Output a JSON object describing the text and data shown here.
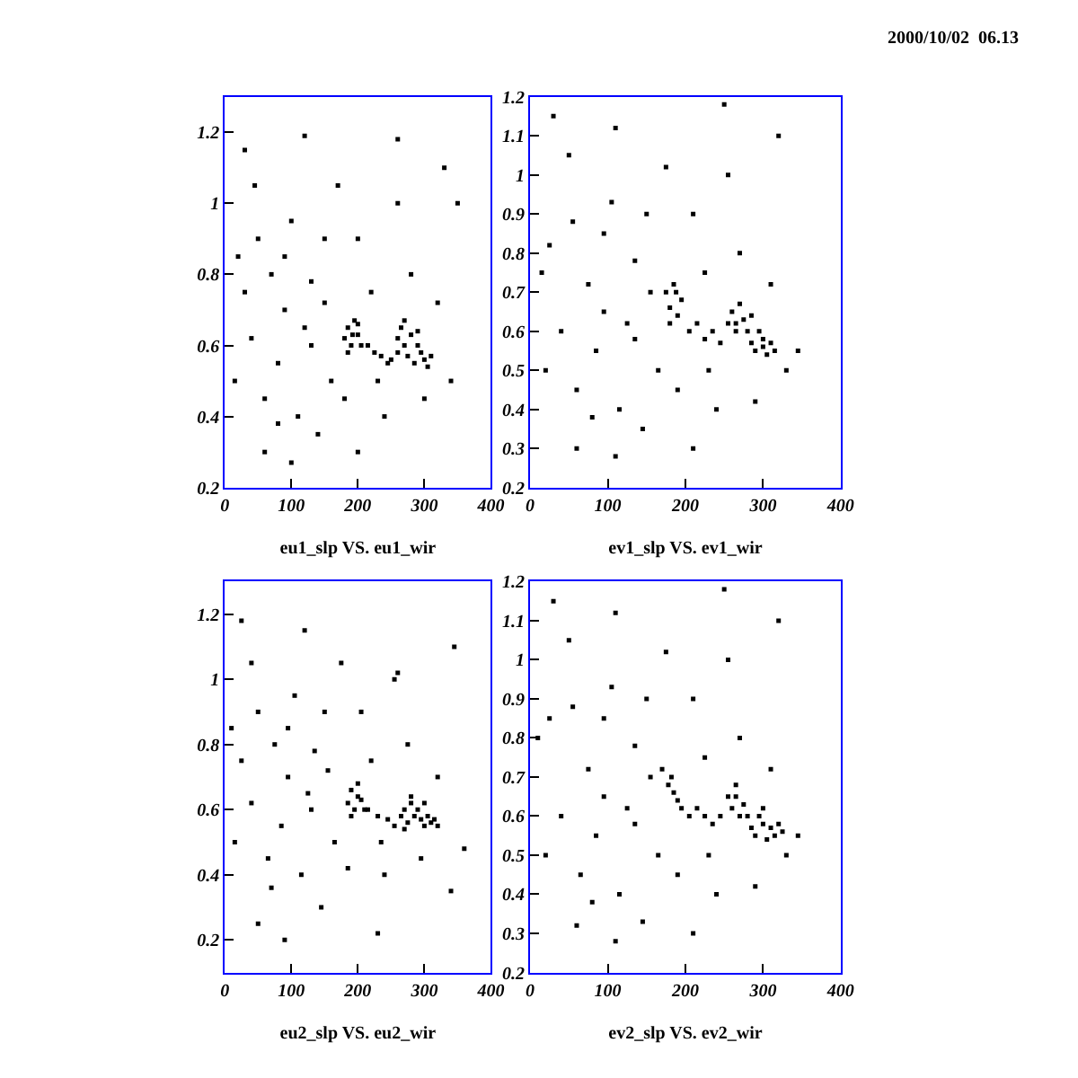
{
  "chart_data": [
    {
      "type": "scatter",
      "xlabel": "eu1_slp VS. eu1_wir",
      "marker": "square",
      "xlim": [
        0,
        400
      ],
      "xticks": [
        0,
        100,
        200,
        300,
        400
      ],
      "ylim": [
        0.2,
        1.3
      ],
      "yticks": [
        0.2,
        0.4,
        0.6,
        0.8,
        1,
        1.2
      ],
      "annotations": [
        "2000/10/02  06.13"
      ],
      "series": [
        {
          "color": "#000000",
          "x": [
            20,
            30,
            40,
            50,
            60,
            70,
            80,
            90,
            100,
            110,
            120,
            130,
            140,
            150,
            160,
            170,
            180,
            200,
            220,
            240,
            260,
            280,
            300,
            320,
            340,
            350,
            30,
            120,
            260,
            60,
            100,
            200,
            45,
            15,
            330,
            90,
            150,
            230,
            80,
            130,
            180,
            185,
            190,
            195,
            200,
            205,
            185,
            200,
            192,
            215,
            225,
            235,
            245,
            250,
            260,
            265,
            270,
            275,
            280,
            285,
            290,
            295,
            300,
            305,
            310,
            270,
            290,
            260
          ],
          "values": [
            0.85,
            0.75,
            0.62,
            0.9,
            0.45,
            0.8,
            0.55,
            0.7,
            0.95,
            0.4,
            0.65,
            0.78,
            0.35,
            0.72,
            0.5,
            1.05,
            0.45,
            0.9,
            0.75,
            0.4,
            1.0,
            0.8,
            0.45,
            0.72,
            0.5,
            1.0,
            1.15,
            1.19,
            1.18,
            0.3,
            0.27,
            0.3,
            1.05,
            0.5,
            1.1,
            0.85,
            0.9,
            0.5,
            0.38,
            0.6,
            0.62,
            0.65,
            0.6,
            0.67,
            0.63,
            0.6,
            0.58,
            0.66,
            0.63,
            0.6,
            0.58,
            0.57,
            0.55,
            0.56,
            0.62,
            0.65,
            0.6,
            0.57,
            0.63,
            0.55,
            0.6,
            0.58,
            0.56,
            0.54,
            0.57,
            0.67,
            0.64,
            0.58
          ]
        }
      ]
    },
    {
      "type": "scatter",
      "xlabel": "ev1_slp VS. ev1_wir",
      "marker": "square",
      "xlim": [
        0,
        400
      ],
      "xticks": [
        0,
        100,
        200,
        300,
        400
      ],
      "ylim": [
        0.2,
        1.2
      ],
      "yticks": [
        0.2,
        0.3,
        0.4,
        0.5,
        0.6,
        0.7,
        0.8,
        0.9,
        1,
        1.1,
        1.2
      ],
      "series": [
        {
          "color": "#000000",
          "x": [
            15,
            25,
            40,
            55,
            60,
            75,
            85,
            95,
            105,
            115,
            125,
            135,
            145,
            155,
            165,
            175,
            190,
            210,
            225,
            240,
            255,
            270,
            290,
            310,
            330,
            345,
            30,
            110,
            250,
            60,
            110,
            210,
            50,
            20,
            320,
            95,
            150,
            230,
            80,
            135,
            175,
            180,
            185,
            190,
            195,
            180,
            188,
            205,
            215,
            225,
            235,
            245,
            255,
            260,
            265,
            270,
            275,
            280,
            285,
            290,
            295,
            300,
            305,
            310,
            315,
            265,
            285,
            300
          ],
          "values": [
            0.75,
            0.82,
            0.6,
            0.88,
            0.45,
            0.72,
            0.55,
            0.65,
            0.93,
            0.4,
            0.62,
            0.78,
            0.35,
            0.7,
            0.5,
            1.02,
            0.45,
            0.9,
            0.75,
            0.4,
            1.0,
            0.8,
            0.42,
            0.72,
            0.5,
            0.55,
            1.15,
            1.12,
            1.18,
            0.3,
            0.28,
            0.3,
            1.05,
            0.5,
            1.1,
            0.85,
            0.9,
            0.5,
            0.38,
            0.58,
            0.7,
            0.66,
            0.72,
            0.64,
            0.68,
            0.62,
            0.7,
            0.6,
            0.62,
            0.58,
            0.6,
            0.57,
            0.62,
            0.65,
            0.6,
            0.67,
            0.63,
            0.6,
            0.57,
            0.55,
            0.6,
            0.58,
            0.54,
            0.57,
            0.55,
            0.62,
            0.64,
            0.56
          ]
        }
      ]
    },
    {
      "type": "scatter",
      "xlabel": "eu2_slp VS. eu2_wir",
      "marker": "square",
      "xlim": [
        0,
        400
      ],
      "xticks": [
        0,
        100,
        200,
        300,
        400
      ],
      "ylim": [
        0.1,
        1.3
      ],
      "yticks": [
        0.2,
        0.4,
        0.6,
        0.8,
        1,
        1.2
      ],
      "series": [
        {
          "color": "#000000",
          "x": [
            10,
            25,
            40,
            50,
            65,
            75,
            85,
            95,
            105,
            115,
            125,
            135,
            145,
            155,
            165,
            175,
            185,
            205,
            220,
            240,
            255,
            275,
            295,
            320,
            340,
            360,
            25,
            120,
            260,
            50,
            90,
            230,
            40,
            15,
            345,
            95,
            150,
            235,
            70,
            130,
            185,
            190,
            195,
            200,
            205,
            210,
            190,
            200,
            215,
            230,
            245,
            255,
            265,
            270,
            275,
            280,
            285,
            290,
            295,
            300,
            305,
            310,
            315,
            320,
            280,
            300,
            270
          ],
          "values": [
            0.85,
            0.75,
            0.62,
            0.9,
            0.45,
            0.8,
            0.55,
            0.7,
            0.95,
            0.4,
            0.65,
            0.78,
            0.3,
            0.72,
            0.5,
            1.05,
            0.42,
            0.9,
            0.75,
            0.4,
            1.0,
            0.8,
            0.45,
            0.7,
            0.35,
            0.48,
            1.18,
            1.15,
            1.02,
            0.25,
            0.2,
            0.22,
            1.05,
            0.5,
            1.1,
            0.85,
            0.9,
            0.5,
            0.36,
            0.6,
            0.62,
            0.66,
            0.6,
            0.68,
            0.63,
            0.6,
            0.58,
            0.64,
            0.6,
            0.58,
            0.57,
            0.55,
            0.58,
            0.6,
            0.56,
            0.62,
            0.58,
            0.6,
            0.57,
            0.55,
            0.58,
            0.56,
            0.57,
            0.55,
            0.64,
            0.62,
            0.54
          ]
        }
      ]
    },
    {
      "type": "scatter",
      "xlabel": "ev2_slp VS. ev2_wir",
      "marker": "square",
      "xlim": [
        0,
        400
      ],
      "xticks": [
        0,
        100,
        200,
        300,
        400
      ],
      "ylim": [
        0.2,
        1.2
      ],
      "yticks": [
        0.2,
        0.3,
        0.4,
        0.5,
        0.6,
        0.7,
        0.8,
        0.9,
        1,
        1.1,
        1.2
      ],
      "series": [
        {
          "color": "#000000",
          "x": [
            10,
            25,
            40,
            55,
            65,
            75,
            85,
            95,
            105,
            115,
            125,
            135,
            145,
            155,
            165,
            175,
            190,
            210,
            225,
            240,
            255,
            270,
            290,
            310,
            330,
            345,
            30,
            110,
            250,
            60,
            110,
            210,
            50,
            20,
            320,
            95,
            150,
            230,
            80,
            135,
            170,
            178,
            185,
            190,
            195,
            182,
            205,
            215,
            225,
            235,
            245,
            255,
            260,
            265,
            270,
            275,
            280,
            285,
            290,
            295,
            300,
            305,
            310,
            315,
            320,
            325,
            265,
            300
          ],
          "values": [
            0.8,
            0.85,
            0.6,
            0.88,
            0.45,
            0.72,
            0.55,
            0.65,
            0.93,
            0.4,
            0.62,
            0.78,
            0.33,
            0.7,
            0.5,
            1.02,
            0.45,
            0.9,
            0.75,
            0.4,
            1.0,
            0.8,
            0.42,
            0.72,
            0.5,
            0.55,
            1.15,
            1.12,
            1.18,
            0.32,
            0.28,
            0.3,
            1.05,
            0.5,
            1.1,
            0.85,
            0.9,
            0.5,
            0.38,
            0.58,
            0.72,
            0.68,
            0.66,
            0.64,
            0.62,
            0.7,
            0.6,
            0.62,
            0.6,
            0.58,
            0.6,
            0.65,
            0.62,
            0.68,
            0.6,
            0.63,
            0.6,
            0.57,
            0.55,
            0.6,
            0.58,
            0.54,
            0.57,
            0.55,
            0.58,
            0.56,
            0.65,
            0.62
          ]
        }
      ]
    }
  ]
}
